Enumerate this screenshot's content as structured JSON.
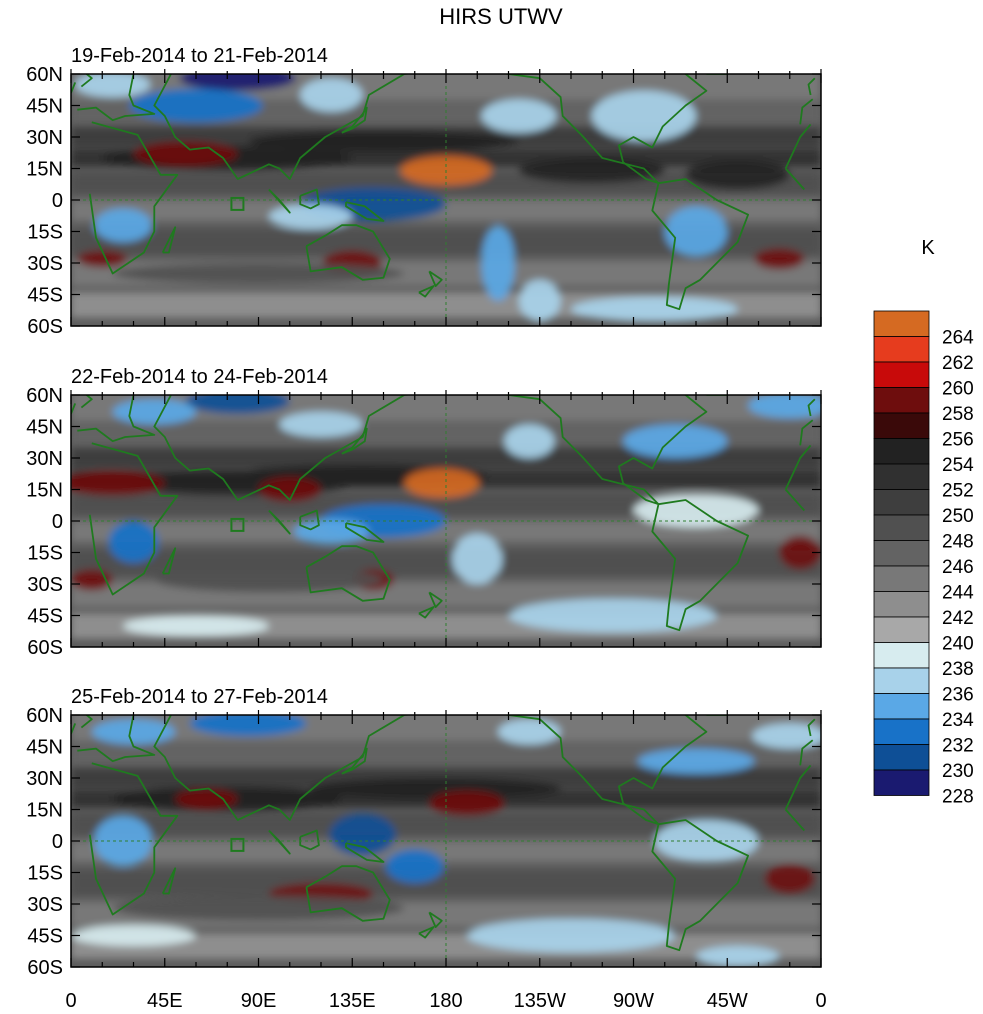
{
  "figure": {
    "title": "HIRS UTWV",
    "colorbar_unit": "K"
  },
  "colors": {
    "land_outline": "#1f7a1f",
    "frame": "#000000",
    "gridline": "#2f7f2f"
  },
  "chart_data": {
    "type": "heatmap",
    "xlabel": "",
    "ylabel": "",
    "x_ticks": [
      "0",
      "45E",
      "90E",
      "135E",
      "180",
      "135W",
      "90W",
      "45W",
      "0"
    ],
    "y_ticks": [
      "60N",
      "45N",
      "30N",
      "15N",
      "0",
      "15S",
      "30S",
      "45S",
      "60S"
    ],
    "xlim": [
      0,
      360
    ],
    "ylim": [
      -60,
      60
    ],
    "colorbar": {
      "levels": [
        228,
        230,
        232,
        234,
        236,
        238,
        240,
        242,
        244,
        246,
        248,
        250,
        252,
        254,
        256,
        258,
        260,
        262,
        264
      ],
      "labels": [
        "228",
        "230",
        "232",
        "234",
        "236",
        "238",
        "240",
        "242",
        "244",
        "246",
        "248",
        "250",
        "252",
        "254",
        "256",
        "258",
        "260",
        "262",
        "264"
      ],
      "colors": [
        "#1a1a70",
        "#0e4f96",
        "#1872c8",
        "#5aa8e6",
        "#a8d2ea",
        "#d7ecef",
        "#a8a8a8",
        "#8e8e8e",
        "#787878",
        "#636363",
        "#505050",
        "#3e3e3e",
        "#303030",
        "#222222",
        "#3a0909",
        "#6e0d0d",
        "#c80a0a",
        "#e63c1e",
        "#d56a22"
      ]
    },
    "panels": [
      {
        "subtitle": "19-Feb-2014 to 21-Feb-2014",
        "features": [
          {
            "lon": 80,
            "lat": 58,
            "sx": 28,
            "sy": 6,
            "value": 229
          },
          {
            "lon": 60,
            "lat": 45,
            "sx": 32,
            "sy": 8,
            "value": 233
          },
          {
            "lon": 125,
            "lat": 50,
            "sx": 15,
            "sy": 8,
            "value": 236
          },
          {
            "lon": 20,
            "lat": 55,
            "sx": 18,
            "sy": 6,
            "value": 236
          },
          {
            "lon": 150,
            "lat": 28,
            "sx": 65,
            "sy": 5,
            "value": 254
          },
          {
            "lon": 75,
            "lat": 20,
            "sx": 60,
            "sy": 6,
            "value": 255
          },
          {
            "lon": 55,
            "lat": 22,
            "sx": 25,
            "sy": 6,
            "value": 258
          },
          {
            "lon": 180,
            "lat": 14,
            "sx": 22,
            "sy": 7,
            "value": 264
          },
          {
            "lon": 215,
            "lat": 40,
            "sx": 18,
            "sy": 8,
            "value": 237
          },
          {
            "lon": 275,
            "lat": 40,
            "sx": 25,
            "sy": 12,
            "value": 236
          },
          {
            "lon": 320,
            "lat": 12,
            "sx": 25,
            "sy": 7,
            "value": 255
          },
          {
            "lon": 250,
            "lat": 14,
            "sx": 35,
            "sy": 6,
            "value": 254
          },
          {
            "lon": 145,
            "lat": -2,
            "sx": 35,
            "sy": 8,
            "value": 231
          },
          {
            "lon": 115,
            "lat": -8,
            "sx": 20,
            "sy": 6,
            "value": 236
          },
          {
            "lon": 205,
            "lat": -30,
            "sx": 8,
            "sy": 18,
            "value": 234
          },
          {
            "lon": 225,
            "lat": -48,
            "sx": 10,
            "sy": 10,
            "value": 237
          },
          {
            "lon": 25,
            "lat": -12,
            "sx": 14,
            "sy": 8,
            "value": 235
          },
          {
            "lon": 300,
            "lat": -15,
            "sx": 15,
            "sy": 12,
            "value": 235
          },
          {
            "lon": 15,
            "lat": -28,
            "sx": 12,
            "sy": 4,
            "value": 258
          },
          {
            "lon": 340,
            "lat": -28,
            "sx": 12,
            "sy": 5,
            "value": 258
          },
          {
            "lon": 135,
            "lat": -30,
            "sx": 14,
            "sy": 6,
            "value": 258
          },
          {
            "lon": 90,
            "lat": -35,
            "sx": 70,
            "sy": 5,
            "value": 248
          },
          {
            "lon": 280,
            "lat": -52,
            "sx": 40,
            "sy": 6,
            "value": 237
          }
        ]
      },
      {
        "subtitle": "22-Feb-2014 to 24-Feb-2014",
        "features": [
          {
            "lon": 80,
            "lat": 57,
            "sx": 25,
            "sy": 6,
            "value": 231
          },
          {
            "lon": 40,
            "lat": 52,
            "sx": 20,
            "sy": 6,
            "value": 235
          },
          {
            "lon": 120,
            "lat": 46,
            "sx": 20,
            "sy": 6,
            "value": 236
          },
          {
            "lon": 290,
            "lat": 38,
            "sx": 25,
            "sy": 8,
            "value": 234
          },
          {
            "lon": 220,
            "lat": 38,
            "sx": 12,
            "sy": 8,
            "value": 237
          },
          {
            "lon": 345,
            "lat": 55,
            "sx": 20,
            "sy": 6,
            "value": 235
          },
          {
            "lon": 140,
            "lat": 22,
            "sx": 60,
            "sy": 5,
            "value": 255
          },
          {
            "lon": 80,
            "lat": 18,
            "sx": 55,
            "sy": 6,
            "value": 255
          },
          {
            "lon": 20,
            "lat": 18,
            "sx": 25,
            "sy": 6,
            "value": 258
          },
          {
            "lon": 105,
            "lat": 15,
            "sx": 15,
            "sy": 6,
            "value": 258
          },
          {
            "lon": 178,
            "lat": 18,
            "sx": 18,
            "sy": 7,
            "value": 264
          },
          {
            "lon": 300,
            "lat": 5,
            "sx": 30,
            "sy": 8,
            "value": 238
          },
          {
            "lon": 150,
            "lat": 0,
            "sx": 30,
            "sy": 8,
            "value": 233
          },
          {
            "lon": 125,
            "lat": -5,
            "sx": 18,
            "sy": 6,
            "value": 235
          },
          {
            "lon": 30,
            "lat": -10,
            "sx": 12,
            "sy": 10,
            "value": 233
          },
          {
            "lon": 195,
            "lat": -18,
            "sx": 12,
            "sy": 12,
            "value": 236
          },
          {
            "lon": 10,
            "lat": -28,
            "sx": 10,
            "sy": 5,
            "value": 258
          },
          {
            "lon": 145,
            "lat": -28,
            "sx": 10,
            "sy": 5,
            "value": 258
          },
          {
            "lon": 95,
            "lat": -28,
            "sx": 55,
            "sy": 6,
            "value": 248
          },
          {
            "lon": 350,
            "lat": -15,
            "sx": 10,
            "sy": 8,
            "value": 258
          },
          {
            "lon": 260,
            "lat": -45,
            "sx": 50,
            "sy": 8,
            "value": 237
          },
          {
            "lon": 60,
            "lat": -50,
            "sx": 35,
            "sy": 5,
            "value": 239
          }
        ]
      },
      {
        "subtitle": "25-Feb-2014 to 27-Feb-2014",
        "features": [
          {
            "lon": 85,
            "lat": 56,
            "sx": 28,
            "sy": 6,
            "value": 232
          },
          {
            "lon": 30,
            "lat": 52,
            "sx": 20,
            "sy": 6,
            "value": 235
          },
          {
            "lon": 220,
            "lat": 52,
            "sx": 15,
            "sy": 6,
            "value": 236
          },
          {
            "lon": 300,
            "lat": 38,
            "sx": 28,
            "sy": 6,
            "value": 234
          },
          {
            "lon": 345,
            "lat": 50,
            "sx": 18,
            "sy": 6,
            "value": 236
          },
          {
            "lon": 175,
            "lat": 25,
            "sx": 60,
            "sy": 5,
            "value": 254
          },
          {
            "lon": 75,
            "lat": 20,
            "sx": 55,
            "sy": 6,
            "value": 255
          },
          {
            "lon": 190,
            "lat": 18,
            "sx": 18,
            "sy": 6,
            "value": 258
          },
          {
            "lon": 65,
            "lat": 20,
            "sx": 15,
            "sy": 5,
            "value": 258
          },
          {
            "lon": 140,
            "lat": 3,
            "sx": 16,
            "sy": 10,
            "value": 231
          },
          {
            "lon": 165,
            "lat": -12,
            "sx": 14,
            "sy": 8,
            "value": 233
          },
          {
            "lon": 25,
            "lat": 0,
            "sx": 14,
            "sy": 12,
            "value": 234
          },
          {
            "lon": 305,
            "lat": 0,
            "sx": 25,
            "sy": 10,
            "value": 237
          },
          {
            "lon": 120,
            "lat": -25,
            "sx": 25,
            "sy": 5,
            "value": 258
          },
          {
            "lon": 345,
            "lat": -18,
            "sx": 12,
            "sy": 7,
            "value": 258
          },
          {
            "lon": 90,
            "lat": -32,
            "sx": 70,
            "sy": 6,
            "value": 248
          },
          {
            "lon": 240,
            "lat": -45,
            "sx": 50,
            "sy": 8,
            "value": 237
          },
          {
            "lon": 320,
            "lat": -55,
            "sx": 20,
            "sy": 5,
            "value": 237
          },
          {
            "lon": 30,
            "lat": -45,
            "sx": 30,
            "sy": 5,
            "value": 239
          }
        ]
      }
    ]
  }
}
